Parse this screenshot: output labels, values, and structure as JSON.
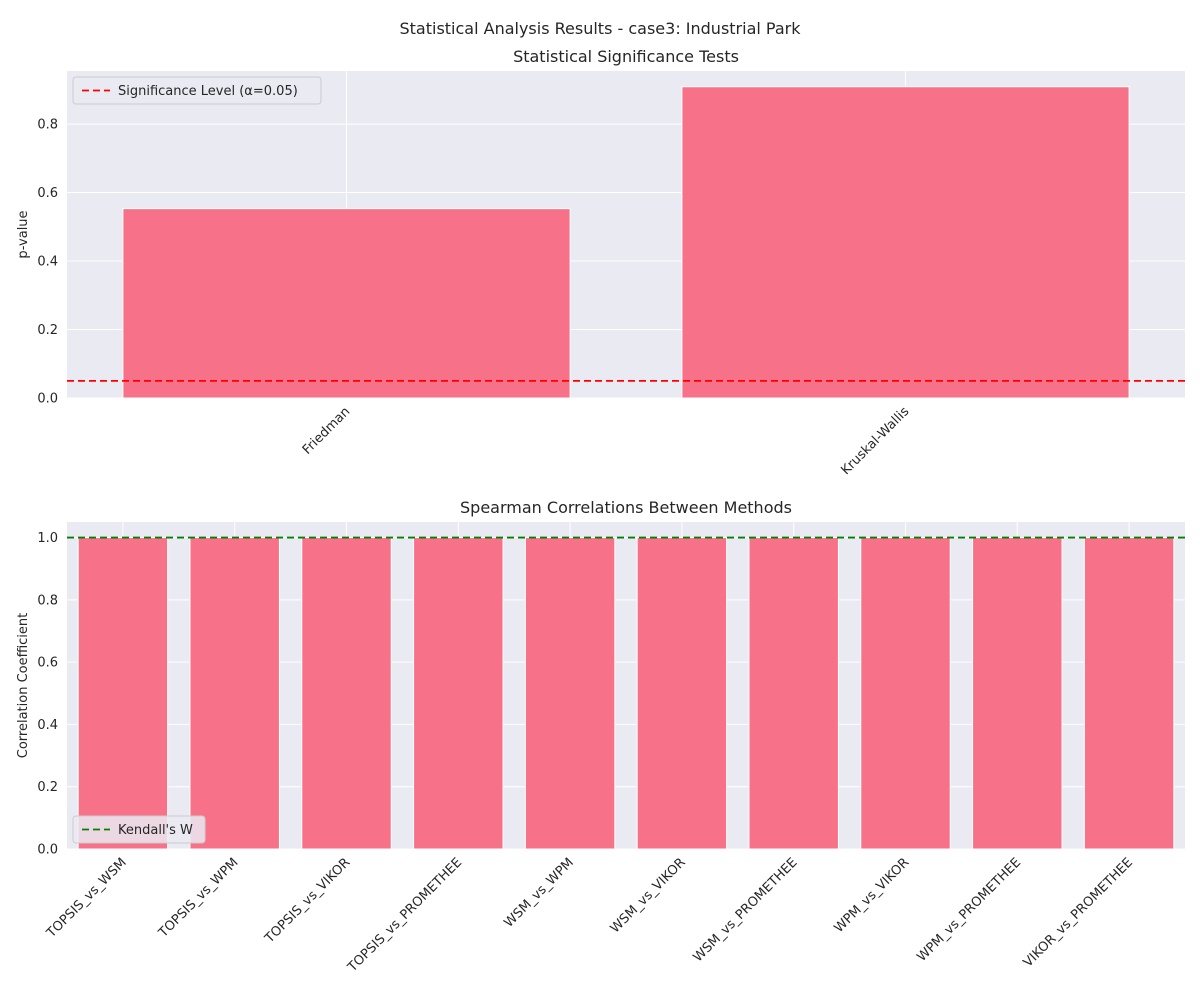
{
  "figure": {
    "suptitle": "Statistical Analysis Results - case3: Industrial Park"
  },
  "colors": {
    "bar": "#f77189",
    "axes_bg": "#eaeaf2",
    "grid": "#ffffff",
    "text": "#262626",
    "significance_line": "#ff0000",
    "kendall_line": "#008000"
  },
  "chart_data": [
    {
      "type": "bar",
      "title": "Statistical Significance Tests",
      "xlabel": "",
      "ylabel": "p-value",
      "categories": [
        "Friedman",
        "Kruskal-Wallis"
      ],
      "values": [
        0.553,
        0.909
      ],
      "ylim": [
        0,
        0.955
      ],
      "yticks": [
        0.0,
        0.2,
        0.4,
        0.6,
        0.8
      ],
      "ytick_labels": [
        "0.0",
        "0.2",
        "0.4",
        "0.6",
        "0.8"
      ],
      "grid": true,
      "reference_line": {
        "value": 0.05,
        "style": "dashed",
        "color": "#ff0000",
        "label": "Significance Level (α=0.05)"
      },
      "legend": {
        "position": "top-left",
        "entries": [
          "Significance Level (α=0.05)"
        ]
      }
    },
    {
      "type": "bar",
      "title": "Spearman Correlations Between Methods",
      "xlabel": "",
      "ylabel": "Correlation Coefficient",
      "categories": [
        "TOPSIS_vs_WSM",
        "TOPSIS_vs_WPM",
        "TOPSIS_vs_VIKOR",
        "TOPSIS_vs_PROMETHEE",
        "WSM_vs_WPM",
        "WSM_vs_VIKOR",
        "WSM_vs_PROMETHEE",
        "WPM_vs_VIKOR",
        "WPM_vs_PROMETHEE",
        "VIKOR_vs_PROMETHEE"
      ],
      "values": [
        1.0,
        1.0,
        1.0,
        1.0,
        1.0,
        1.0,
        1.0,
        1.0,
        1.0,
        1.0
      ],
      "ylim": [
        0,
        1.05
      ],
      "yticks": [
        0.0,
        0.2,
        0.4,
        0.6,
        0.8,
        1.0
      ],
      "ytick_labels": [
        "0.0",
        "0.2",
        "0.4",
        "0.6",
        "0.8",
        "1.0"
      ],
      "grid": true,
      "reference_line": {
        "value": 1.0,
        "style": "dashed",
        "color": "#008000",
        "label": "Kendall's W"
      },
      "legend": {
        "position": "bottom-left",
        "entries": [
          "Kendall's W"
        ]
      }
    }
  ]
}
